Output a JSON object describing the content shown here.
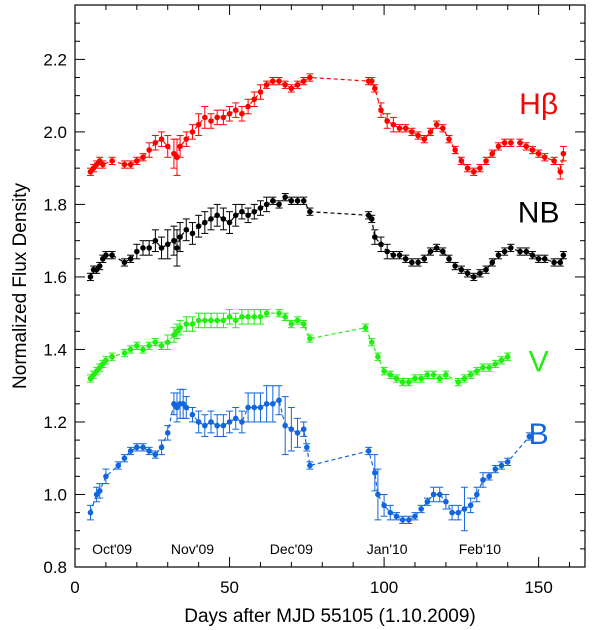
{
  "chart_data": {
    "type": "scatter",
    "title": "",
    "xlabel": "Days after MJD 55105 (1.10.2009)",
    "ylabel": "Normalized Flux Density",
    "xlim": [
      0,
      165
    ],
    "ylim": [
      0.8,
      2.35
    ],
    "x_ticks": [
      0,
      50,
      100,
      150
    ],
    "y_ticks": [
      0.8,
      1.0,
      1.2,
      1.4,
      1.6,
      1.8,
      2.0,
      2.2
    ],
    "y_tick_labels": [
      "0.8",
      "1.0",
      "1.2",
      "1.4",
      "1.6",
      "1.8",
      "2.0",
      "2.2"
    ],
    "month_labels": [
      {
        "label": "Oct'09",
        "x": 12
      },
      {
        "label": "Nov'09",
        "x": 38
      },
      {
        "label": "Dec'09",
        "x": 70
      },
      {
        "label": "Jan'10",
        "x": 101
      },
      {
        "label": "Feb'10",
        "x": 131
      }
    ],
    "series": [
      {
        "name": "Hβ",
        "color": "#ff0000",
        "label_pos": [
          150,
          2.08
        ],
        "x": [
          5,
          6,
          7,
          8,
          9,
          12,
          16,
          18,
          20,
          22,
          24,
          26,
          28,
          30,
          32,
          33,
          34,
          36,
          38,
          40,
          42,
          44,
          46,
          48,
          50,
          52,
          54,
          56,
          58,
          60,
          62,
          64,
          66,
          68,
          70,
          72,
          74,
          76,
          95,
          96,
          97,
          99,
          101,
          103,
          105,
          107,
          109,
          111,
          113,
          115,
          117,
          119,
          121,
          123,
          125,
          127,
          129,
          131,
          133,
          135,
          137,
          139,
          141,
          144,
          146,
          148,
          150,
          152,
          155,
          157,
          158
        ],
        "y": [
          1.89,
          1.9,
          1.91,
          1.92,
          1.91,
          1.92,
          1.91,
          1.91,
          1.92,
          1.93,
          1.95,
          1.97,
          1.98,
          1.96,
          1.94,
          1.93,
          1.96,
          1.98,
          2.0,
          2.02,
          2.04,
          2.03,
          2.04,
          2.04,
          2.05,
          2.06,
          2.05,
          2.07,
          2.09,
          2.11,
          2.13,
          2.14,
          2.14,
          2.13,
          2.12,
          2.13,
          2.14,
          2.15,
          2.14,
          2.14,
          2.12,
          2.06,
          2.03,
          2.02,
          2.01,
          2.01,
          2.0,
          1.99,
          1.98,
          2.0,
          2.02,
          2.01,
          1.98,
          1.95,
          1.92,
          1.9,
          1.89,
          1.9,
          1.92,
          1.94,
          1.96,
          1.97,
          1.97,
          1.97,
          1.96,
          1.95,
          1.94,
          1.93,
          1.92,
          1.89,
          1.94
        ],
        "err": [
          0.01,
          0.01,
          0.01,
          0.01,
          0.01,
          0.01,
          0.01,
          0.01,
          0.01,
          0.01,
          0.02,
          0.02,
          0.02,
          0.03,
          0.04,
          0.05,
          0.03,
          0.02,
          0.02,
          0.03,
          0.03,
          0.02,
          0.02,
          0.02,
          0.02,
          0.02,
          0.02,
          0.02,
          0.02,
          0.02,
          0.01,
          0.01,
          0.01,
          0.01,
          0.01,
          0.01,
          0.01,
          0.01,
          0.01,
          0.01,
          0.01,
          0.02,
          0.02,
          0.02,
          0.01,
          0.01,
          0.01,
          0.01,
          0.01,
          0.01,
          0.01,
          0.01,
          0.01,
          0.01,
          0.01,
          0.01,
          0.01,
          0.01,
          0.01,
          0.01,
          0.01,
          0.01,
          0.01,
          0.01,
          0.01,
          0.01,
          0.01,
          0.01,
          0.01,
          0.02,
          0.02
        ]
      },
      {
        "name": "NB",
        "color": "#000000",
        "label_pos": [
          150,
          1.78
        ],
        "x": [
          5,
          6,
          7,
          8,
          9,
          10,
          12,
          16,
          18,
          20,
          22,
          24,
          26,
          28,
          30,
          32,
          33,
          34,
          36,
          38,
          40,
          42,
          44,
          46,
          48,
          50,
          52,
          54,
          56,
          58,
          60,
          62,
          64,
          66,
          68,
          70,
          72,
          74,
          76,
          95,
          96,
          97,
          99,
          101,
          103,
          105,
          107,
          109,
          111,
          113,
          115,
          117,
          119,
          121,
          123,
          125,
          127,
          129,
          131,
          133,
          135,
          137,
          139,
          141,
          144,
          146,
          148,
          150,
          152,
          155,
          157,
          158
        ],
        "y": [
          1.6,
          1.62,
          1.62,
          1.63,
          1.65,
          1.66,
          1.66,
          1.64,
          1.65,
          1.67,
          1.68,
          1.68,
          1.7,
          1.68,
          1.69,
          1.7,
          1.68,
          1.71,
          1.73,
          1.72,
          1.74,
          1.75,
          1.76,
          1.77,
          1.76,
          1.75,
          1.77,
          1.78,
          1.77,
          1.78,
          1.79,
          1.8,
          1.81,
          1.8,
          1.82,
          1.81,
          1.81,
          1.81,
          1.78,
          1.77,
          1.76,
          1.71,
          1.69,
          1.67,
          1.66,
          1.66,
          1.65,
          1.64,
          1.64,
          1.65,
          1.67,
          1.68,
          1.67,
          1.65,
          1.63,
          1.62,
          1.61,
          1.6,
          1.61,
          1.62,
          1.64,
          1.66,
          1.67,
          1.68,
          1.67,
          1.67,
          1.66,
          1.65,
          1.65,
          1.64,
          1.64,
          1.66
        ],
        "err": [
          0.01,
          0.01,
          0.01,
          0.01,
          0.01,
          0.01,
          0.01,
          0.01,
          0.01,
          0.02,
          0.02,
          0.02,
          0.03,
          0.03,
          0.04,
          0.04,
          0.05,
          0.04,
          0.03,
          0.03,
          0.03,
          0.03,
          0.03,
          0.03,
          0.03,
          0.03,
          0.03,
          0.02,
          0.02,
          0.02,
          0.02,
          0.02,
          0.01,
          0.01,
          0.01,
          0.01,
          0.01,
          0.01,
          0.01,
          0.01,
          0.01,
          0.02,
          0.02,
          0.02,
          0.01,
          0.01,
          0.01,
          0.01,
          0.01,
          0.01,
          0.01,
          0.01,
          0.01,
          0.01,
          0.01,
          0.01,
          0.01,
          0.01,
          0.01,
          0.01,
          0.01,
          0.01,
          0.01,
          0.01,
          0.01,
          0.01,
          0.01,
          0.01,
          0.01,
          0.01,
          0.01,
          0.01
        ]
      },
      {
        "name": "V",
        "color": "#22ee11",
        "label_pos": [
          150,
          1.37
        ],
        "x": [
          5,
          6,
          7,
          8,
          9,
          10,
          12,
          16,
          18,
          20,
          22,
          24,
          26,
          28,
          30,
          32,
          33,
          34,
          36,
          38,
          40,
          42,
          44,
          46,
          48,
          50,
          52,
          54,
          56,
          58,
          60,
          62,
          66,
          68,
          70,
          72,
          74,
          76,
          94,
          96,
          98,
          100,
          102,
          104,
          106,
          108,
          110,
          112,
          114,
          116,
          118,
          120,
          124,
          126,
          128,
          130,
          132,
          134,
          136,
          138,
          140
        ],
        "y": [
          1.32,
          1.33,
          1.34,
          1.35,
          1.36,
          1.37,
          1.38,
          1.39,
          1.4,
          1.41,
          1.4,
          1.41,
          1.42,
          1.41,
          1.42,
          1.44,
          1.45,
          1.46,
          1.47,
          1.47,
          1.48,
          1.48,
          1.48,
          1.48,
          1.48,
          1.49,
          1.48,
          1.49,
          1.49,
          1.49,
          1.49,
          1.5,
          1.5,
          1.49,
          1.47,
          1.48,
          1.47,
          1.43,
          1.46,
          1.42,
          1.38,
          1.34,
          1.33,
          1.32,
          1.31,
          1.31,
          1.32,
          1.32,
          1.33,
          1.33,
          1.32,
          1.33,
          1.31,
          1.32,
          1.33,
          1.34,
          1.35,
          1.35,
          1.36,
          1.37,
          1.38
        ],
        "err": [
          0.01,
          0.01,
          0.01,
          0.01,
          0.01,
          0.01,
          0.01,
          0.01,
          0.01,
          0.01,
          0.01,
          0.01,
          0.01,
          0.01,
          0.02,
          0.02,
          0.02,
          0.02,
          0.02,
          0.02,
          0.02,
          0.02,
          0.02,
          0.02,
          0.02,
          0.02,
          0.02,
          0.02,
          0.02,
          0.02,
          0.02,
          0.01,
          0.01,
          0.01,
          0.01,
          0.01,
          0.01,
          0.01,
          0.01,
          0.01,
          0.01,
          0.01,
          0.01,
          0.01,
          0.01,
          0.01,
          0.01,
          0.01,
          0.01,
          0.01,
          0.01,
          0.01,
          0.01,
          0.01,
          0.01,
          0.01,
          0.01,
          0.01,
          0.01,
          0.01,
          0.01
        ]
      },
      {
        "name": "B",
        "color": "#1166dd",
        "label_pos": [
          150,
          1.17
        ],
        "x": [
          5,
          7,
          8,
          10,
          14,
          16,
          18,
          20,
          22,
          24,
          26,
          28,
          30,
          32,
          33,
          34,
          35,
          36,
          38,
          40,
          42,
          44,
          46,
          48,
          50,
          52,
          54,
          56,
          58,
          60,
          62,
          64,
          66,
          68,
          70,
          72,
          74,
          75,
          76,
          95,
          97,
          98,
          100,
          102,
          104,
          106,
          108,
          110,
          112,
          114,
          116,
          118,
          120,
          122,
          124,
          126,
          128,
          130,
          132,
          134,
          136,
          138,
          140,
          147
        ],
        "y": [
          0.95,
          1.0,
          1.01,
          1.05,
          1.08,
          1.1,
          1.12,
          1.13,
          1.13,
          1.12,
          1.11,
          1.13,
          1.17,
          1.25,
          1.24,
          1.25,
          1.25,
          1.24,
          1.22,
          1.2,
          1.19,
          1.2,
          1.19,
          1.19,
          1.2,
          1.21,
          1.2,
          1.24,
          1.24,
          1.24,
          1.25,
          1.25,
          1.26,
          1.19,
          1.18,
          1.17,
          1.18,
          1.13,
          1.08,
          1.12,
          1.06,
          1.0,
          0.97,
          0.95,
          0.94,
          0.93,
          0.93,
          0.94,
          0.96,
          0.98,
          1.0,
          1.0,
          0.98,
          0.95,
          0.95,
          0.96,
          0.97,
          1.0,
          1.04,
          1.05,
          1.07,
          1.08,
          1.09,
          1.16
        ],
        "err": [
          0.02,
          0.02,
          0.02,
          0.02,
          0.01,
          0.01,
          0.01,
          0.01,
          0.01,
          0.01,
          0.01,
          0.02,
          0.02,
          0.03,
          0.04,
          0.04,
          0.04,
          0.03,
          0.02,
          0.03,
          0.03,
          0.03,
          0.03,
          0.03,
          0.03,
          0.03,
          0.03,
          0.04,
          0.04,
          0.04,
          0.05,
          0.05,
          0.04,
          0.08,
          0.06,
          0.04,
          0.02,
          0.01,
          0.01,
          0.01,
          0.05,
          0.07,
          0.03,
          0.02,
          0.01,
          0.01,
          0.01,
          0.01,
          0.01,
          0.01,
          0.02,
          0.02,
          0.02,
          0.02,
          0.02,
          0.06,
          0.02,
          0.02,
          0.02,
          0.01,
          0.01,
          0.01,
          0.01,
          0.01
        ]
      }
    ]
  }
}
